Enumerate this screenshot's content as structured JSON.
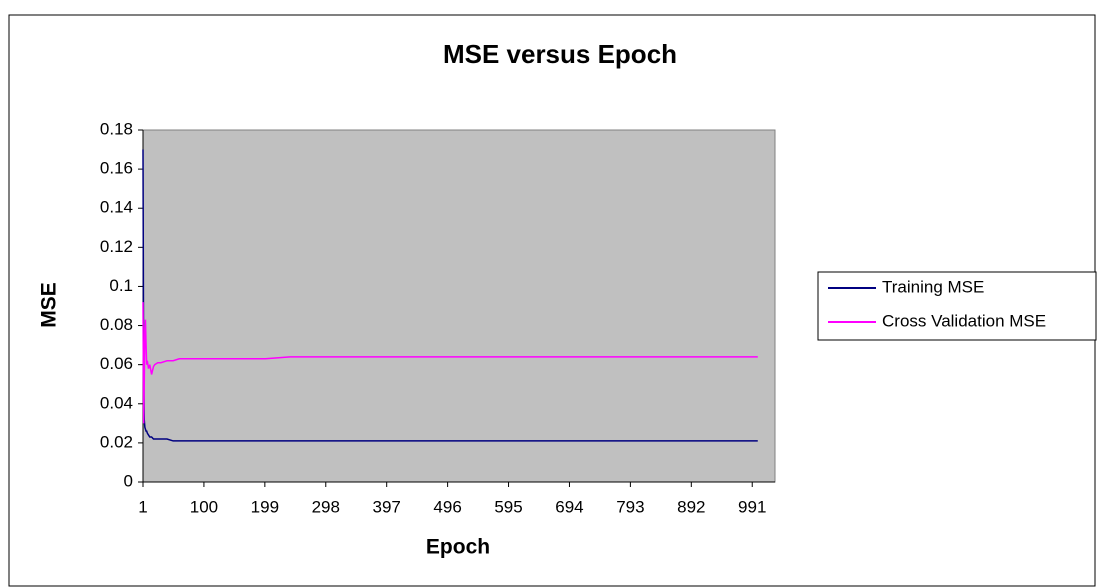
{
  "chart_data": {
    "type": "line",
    "title": "MSE versus Epoch",
    "x_label": "Epoch",
    "y_label": "MSE",
    "x": [
      1,
      2,
      3,
      4,
      5,
      6,
      7,
      8,
      10,
      12,
      15,
      18,
      20,
      25,
      30,
      40,
      50,
      60,
      100,
      200,
      240,
      300,
      500,
      700,
      1000
    ],
    "series": [
      {
        "name": "Training MSE",
        "color": "#000080",
        "values": [
          0.17,
          0.06,
          0.032,
          0.028,
          0.027,
          0.026,
          0.026,
          0.025,
          0.024,
          0.023,
          0.023,
          0.022,
          0.022,
          0.022,
          0.022,
          0.022,
          0.021,
          0.021,
          0.021,
          0.021,
          0.021,
          0.021,
          0.021,
          0.021,
          0.021
        ]
      },
      {
        "name": "Cross Validation MSE",
        "color": "#ff00ff",
        "values": [
          0.092,
          0.03,
          0.05,
          0.078,
          0.083,
          0.07,
          0.06,
          0.062,
          0.058,
          0.06,
          0.055,
          0.059,
          0.06,
          0.061,
          0.061,
          0.062,
          0.062,
          0.063,
          0.063,
          0.063,
          0.064,
          0.064,
          0.064,
          0.064,
          0.064
        ]
      }
    ],
    "xlim": [
      1,
      1028
    ],
    "xticks": [
      1,
      100,
      199,
      298,
      397,
      496,
      595,
      694,
      793,
      892,
      991
    ],
    "ylim": [
      0,
      0.18
    ],
    "yticks": [
      0,
      0.02,
      0.04,
      0.06,
      0.08,
      0.1,
      0.12,
      0.14,
      0.16,
      0.18
    ],
    "legend": "right"
  }
}
